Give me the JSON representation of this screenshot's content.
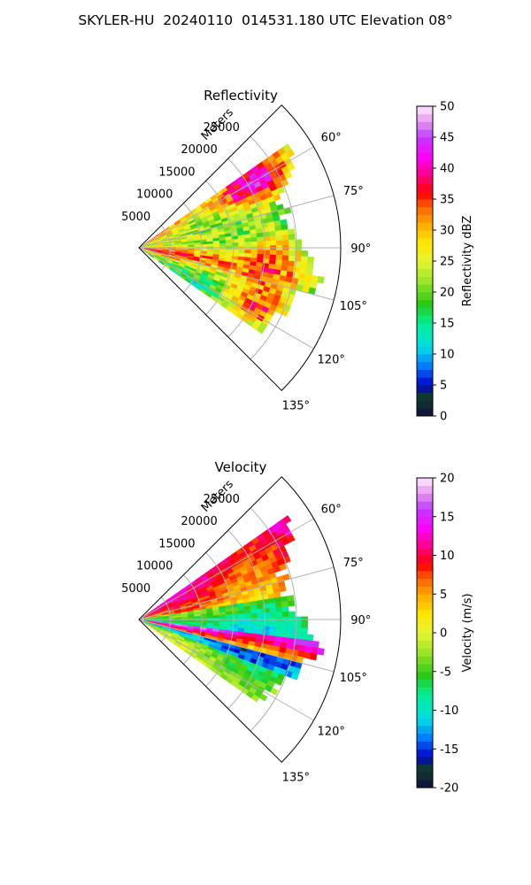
{
  "suptitle": "SKYLER-HU  20240110  014531.180 UTC Elevation 08°",
  "chart_data": [
    {
      "type": "heatmap",
      "subtype": "polar-sector (radar PPI)",
      "title": "Reflectivity",
      "radial_label": "Meters",
      "radial_ticks": [
        5000,
        10000,
        15000,
        20000,
        25000
      ],
      "angle_ticks": [
        "60°",
        "75°",
        "90°",
        "105°",
        "120°",
        "135°"
      ],
      "angle_range_deg": [
        45,
        135
      ],
      "r_max_m": 32000,
      "colorbar": {
        "label": "Reflectivity dBZ",
        "min": 0,
        "max": 50,
        "ticks": [
          0,
          5,
          10,
          15,
          20,
          25,
          30,
          35,
          40,
          45,
          50
        ]
      },
      "field": {
        "description_values": "typical 25-35 dBZ, peaks 40-45 dBZ near 20000 m at 62° and 117°, echo edge ~25000-30000 m",
        "range_extent_m": [
          0,
          30000
        ],
        "angle_extent_deg": [
          55,
          125
        ]
      }
    },
    {
      "type": "heatmap",
      "subtype": "polar-sector (radar PPI)",
      "title": "Velocity",
      "radial_label": "Meters",
      "radial_ticks": [
        5000,
        10000,
        15000,
        20000,
        25000
      ],
      "angle_ticks": [
        "60°",
        "75°",
        "90°",
        "105°",
        "120°",
        "135°"
      ],
      "angle_range_deg": [
        45,
        135
      ],
      "r_max_m": 32000,
      "colorbar": {
        "label": "Velocity (m/s)",
        "min": -20,
        "max": 20,
        "ticks": [
          -20,
          -15,
          -10,
          -5,
          0,
          5,
          10,
          15,
          20
        ]
      },
      "field": {
        "description_values": "about +10 m/s at 60-80°, about -5 to -10 m/s near 90°, folded band -15/+15 m/s along 100-115°",
        "range_extent_m": [
          0,
          30000
        ],
        "angle_extent_deg": [
          55,
          125
        ]
      }
    }
  ]
}
